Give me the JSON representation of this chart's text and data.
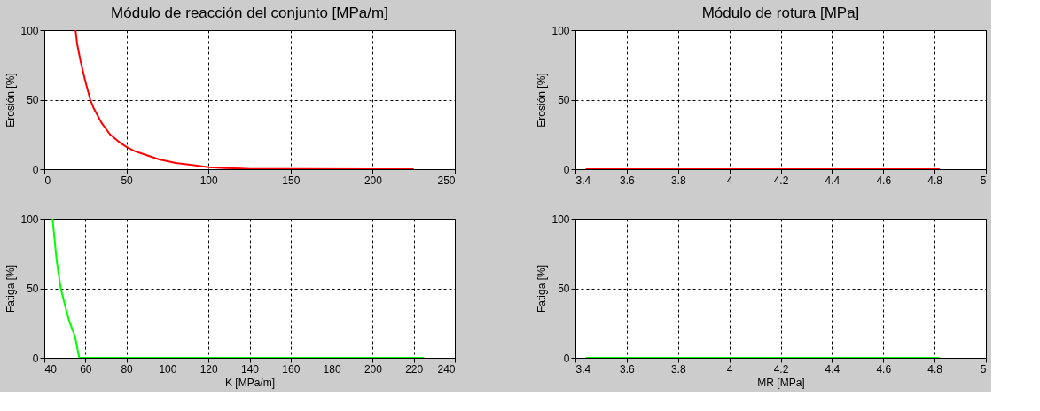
{
  "chart_data": [
    {
      "type": "line",
      "title": "Módulo de reacción del conjunto [MPa/m]",
      "ylabel": "Erosión [%]",
      "xlim": [
        0,
        250
      ],
      "xticks": [
        0,
        50,
        100,
        150,
        200,
        250
      ],
      "ylim": [
        0,
        100
      ],
      "yticks": [
        0,
        50,
        100
      ],
      "grid": true,
      "series": [
        {
          "color": "#ff0000",
          "x": [
            19,
            20,
            22,
            25,
            28,
            30,
            35,
            40,
            45,
            50,
            55,
            60,
            70,
            80,
            90,
            100,
            110,
            120,
            125,
            150,
            200,
            225
          ],
          "values": [
            100,
            90,
            78,
            63,
            50,
            44,
            33,
            25,
            20,
            16,
            13,
            11,
            7,
            4.5,
            3,
            1.5,
            0.8,
            0.5,
            0.2,
            0.1,
            0,
            0
          ]
        }
      ]
    },
    {
      "type": "line",
      "title": "Módulo de rotura [MPa]",
      "ylabel": "Erosión [%]",
      "xlim": [
        3.4,
        5
      ],
      "xticks": [
        3.4,
        3.6,
        3.8,
        4,
        4.2,
        4.4,
        4.6,
        4.8,
        5
      ],
      "ylim": [
        0,
        100
      ],
      "yticks": [
        0,
        50,
        100
      ],
      "grid": true,
      "series": [
        {
          "color": "#ff0000",
          "x": [
            3.44,
            4.82
          ],
          "values": [
            0,
            0
          ]
        }
      ]
    },
    {
      "type": "line",
      "xlabel": "K [MPa/m]",
      "ylabel": "Fatiga [%]",
      "xlim": [
        40,
        240
      ],
      "xticks": [
        40,
        60,
        80,
        100,
        120,
        140,
        160,
        180,
        200,
        220,
        240
      ],
      "ylim": [
        0,
        100
      ],
      "yticks": [
        0,
        50,
        100
      ],
      "grid": true,
      "series": [
        {
          "color": "#00ff00",
          "x": [
            44,
            45,
            46,
            48,
            50,
            52,
            55,
            57,
            100,
            225
          ],
          "values": [
            100,
            85,
            70,
            50,
            38,
            27,
            15,
            0,
            0,
            0
          ]
        }
      ]
    },
    {
      "type": "line",
      "xlabel": "MR [MPa]",
      "ylabel": "Fatiga [%]",
      "xlim": [
        3.4,
        5
      ],
      "xticks": [
        3.4,
        3.6,
        3.8,
        4,
        4.2,
        4.4,
        4.6,
        4.8,
        5
      ],
      "ylim": [
        0,
        100
      ],
      "yticks": [
        0,
        50,
        100
      ],
      "grid": true,
      "series": [
        {
          "color": "#00ff00",
          "x": [
            3.44,
            4.82
          ],
          "values": [
            0,
            0
          ]
        }
      ]
    }
  ]
}
